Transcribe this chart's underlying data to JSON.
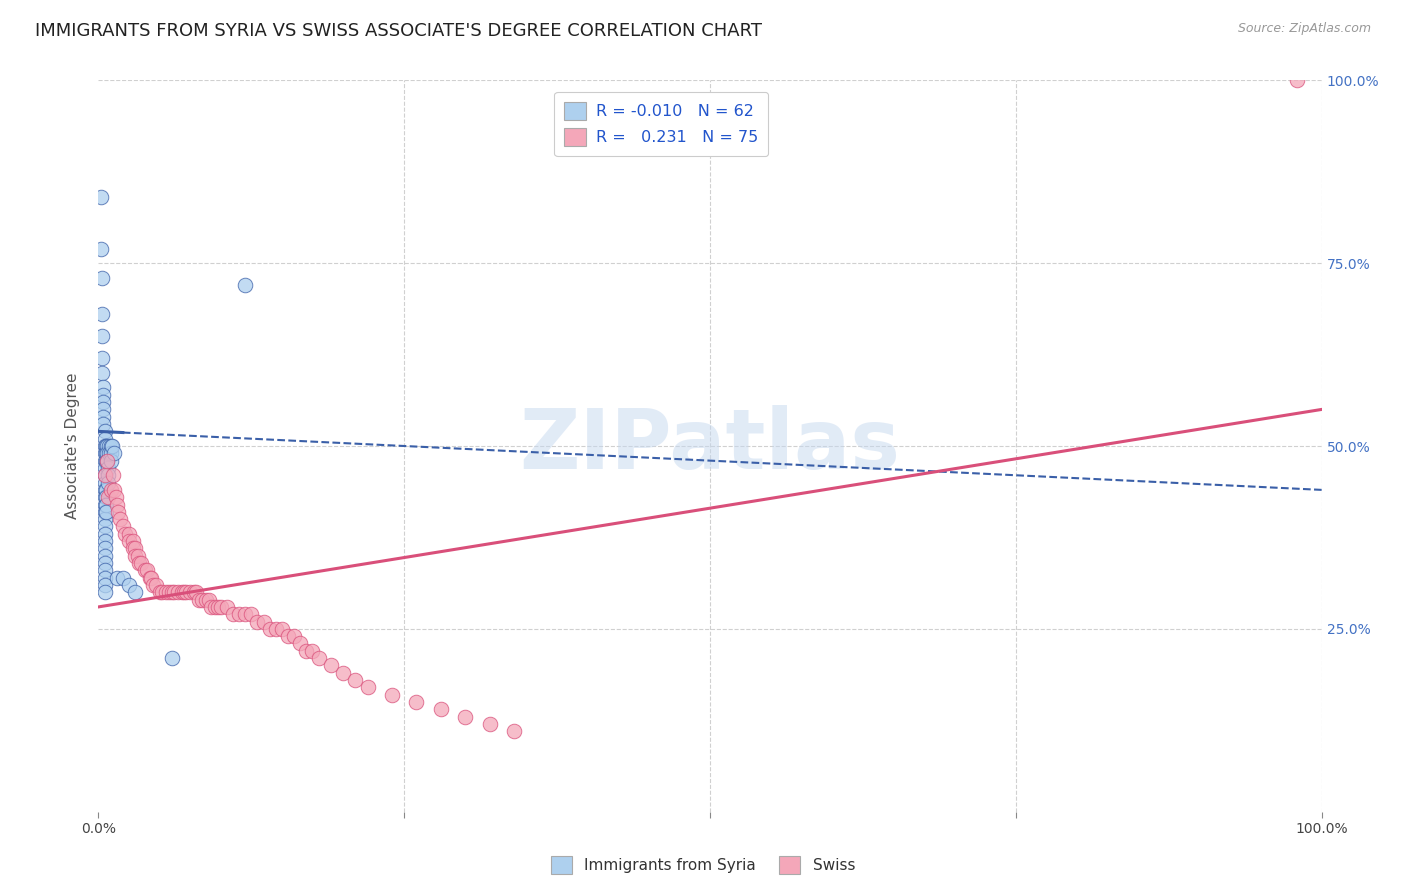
{
  "title": "IMMIGRANTS FROM SYRIA VS SWISS ASSOCIATE'S DEGREE CORRELATION CHART",
  "source": "Source: ZipAtlas.com",
  "ylabel": "Associate's Degree",
  "xlim": [
    0.0,
    1.0
  ],
  "ylim": [
    0.0,
    1.0
  ],
  "watermark": "ZIPatlas",
  "syria_color": "#aed0ee",
  "swiss_color": "#f4a7b9",
  "syria_line_color": "#3a5fa8",
  "swiss_line_color": "#d94f7a",
  "syria_r": -0.01,
  "syria_n": 62,
  "swiss_r": 0.231,
  "swiss_n": 75,
  "syria_intercept": 0.52,
  "syria_slope": -0.08,
  "swiss_intercept": 0.28,
  "swiss_slope": 0.27,
  "background_color": "#ffffff",
  "grid_color": "#d0d0d0",
  "title_fontsize": 13,
  "axis_label_fontsize": 11,
  "tick_fontsize": 10,
  "right_ytick_color": "#4472c4",
  "syria_points_x": [
    0.002,
    0.002,
    0.003,
    0.003,
    0.003,
    0.003,
    0.003,
    0.004,
    0.004,
    0.004,
    0.004,
    0.004,
    0.004,
    0.005,
    0.005,
    0.005,
    0.005,
    0.005,
    0.005,
    0.005,
    0.005,
    0.005,
    0.005,
    0.005,
    0.005,
    0.005,
    0.005,
    0.005,
    0.005,
    0.005,
    0.005,
    0.005,
    0.005,
    0.005,
    0.005,
    0.005,
    0.006,
    0.006,
    0.006,
    0.006,
    0.006,
    0.006,
    0.006,
    0.007,
    0.007,
    0.007,
    0.008,
    0.008,
    0.008,
    0.009,
    0.009,
    0.01,
    0.01,
    0.01,
    0.011,
    0.013,
    0.015,
    0.02,
    0.025,
    0.03,
    0.06,
    0.12
  ],
  "syria_points_y": [
    0.84,
    0.77,
    0.73,
    0.68,
    0.65,
    0.62,
    0.6,
    0.58,
    0.57,
    0.56,
    0.55,
    0.54,
    0.53,
    0.52,
    0.51,
    0.5,
    0.49,
    0.48,
    0.47,
    0.46,
    0.45,
    0.44,
    0.43,
    0.42,
    0.41,
    0.4,
    0.39,
    0.38,
    0.37,
    0.36,
    0.35,
    0.34,
    0.33,
    0.32,
    0.31,
    0.3,
    0.5,
    0.49,
    0.48,
    0.44,
    0.43,
    0.42,
    0.41,
    0.5,
    0.49,
    0.48,
    0.47,
    0.46,
    0.45,
    0.5,
    0.49,
    0.5,
    0.49,
    0.48,
    0.5,
    0.49,
    0.32,
    0.32,
    0.31,
    0.3,
    0.21,
    0.72
  ],
  "swiss_points_x": [
    0.005,
    0.007,
    0.008,
    0.01,
    0.012,
    0.013,
    0.014,
    0.015,
    0.016,
    0.018,
    0.02,
    0.022,
    0.025,
    0.025,
    0.028,
    0.028,
    0.03,
    0.03,
    0.032,
    0.033,
    0.035,
    0.038,
    0.04,
    0.042,
    0.043,
    0.045,
    0.047,
    0.05,
    0.052,
    0.055,
    0.058,
    0.06,
    0.062,
    0.065,
    0.068,
    0.07,
    0.072,
    0.075,
    0.078,
    0.08,
    0.082,
    0.085,
    0.088,
    0.09,
    0.092,
    0.095,
    0.098,
    0.1,
    0.105,
    0.11,
    0.115,
    0.12,
    0.125,
    0.13,
    0.135,
    0.14,
    0.145,
    0.15,
    0.155,
    0.16,
    0.165,
    0.17,
    0.175,
    0.18,
    0.19,
    0.2,
    0.21,
    0.22,
    0.24,
    0.26,
    0.28,
    0.3,
    0.32,
    0.34,
    0.98
  ],
  "swiss_points_y": [
    0.46,
    0.48,
    0.43,
    0.44,
    0.46,
    0.44,
    0.43,
    0.42,
    0.41,
    0.4,
    0.39,
    0.38,
    0.38,
    0.37,
    0.37,
    0.36,
    0.36,
    0.35,
    0.35,
    0.34,
    0.34,
    0.33,
    0.33,
    0.32,
    0.32,
    0.31,
    0.31,
    0.3,
    0.3,
    0.3,
    0.3,
    0.3,
    0.3,
    0.3,
    0.3,
    0.3,
    0.3,
    0.3,
    0.3,
    0.3,
    0.29,
    0.29,
    0.29,
    0.29,
    0.28,
    0.28,
    0.28,
    0.28,
    0.28,
    0.27,
    0.27,
    0.27,
    0.27,
    0.26,
    0.26,
    0.25,
    0.25,
    0.25,
    0.24,
    0.24,
    0.23,
    0.22,
    0.22,
    0.21,
    0.2,
    0.19,
    0.18,
    0.17,
    0.16,
    0.15,
    0.14,
    0.13,
    0.12,
    0.11,
    1.0
  ]
}
